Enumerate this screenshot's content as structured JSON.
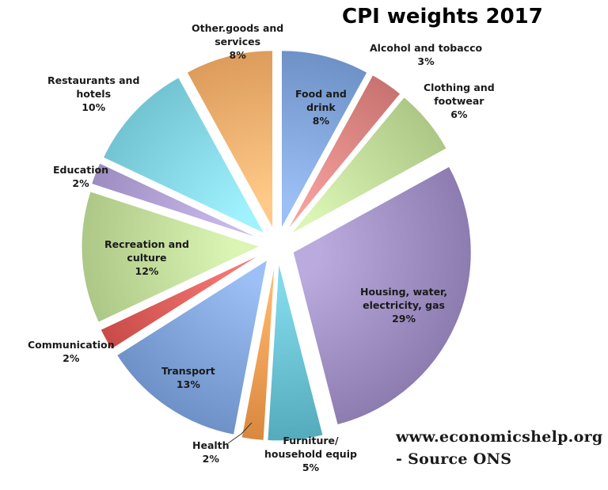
{
  "chart_data": {
    "type": "pie",
    "title": "CPI weights 2017",
    "exploded": true,
    "slices": [
      {
        "label": "Food and drink",
        "value": 8,
        "value_label": "8%",
        "color": "#8aaee3"
      },
      {
        "label": "Alcohol and tobacco",
        "value": 3,
        "value_label": "3%",
        "color": "#e48f8c"
      },
      {
        "label": "Clothing and footwear",
        "value": 6,
        "value_label": "6%",
        "color": "#c9e3a2"
      },
      {
        "label": "Housing, water, electricity, gas",
        "value": 29,
        "value_label": "29%",
        "color": "#a898cc"
      },
      {
        "label": "Furniture/ household equip",
        "value": 5,
        "value_label": "5%",
        "color": "#6fc7d8"
      },
      {
        "label": "Health",
        "value": 2,
        "value_label": "2%",
        "color": "#f5a45a"
      },
      {
        "label": "Transport",
        "value": 13,
        "value_label": "13%",
        "color": "#8aaee3"
      },
      {
        "label": "Communication",
        "value": 2,
        "value_label": "2%",
        "color": "#e46763"
      },
      {
        "label": "Recreation and culture",
        "value": 12,
        "value_label": "12%",
        "color": "#c9e3a2"
      },
      {
        "label": "Education",
        "value": 2,
        "value_label": "2%",
        "color": "#b8a8dc"
      },
      {
        "label": "Restaurants and hotels",
        "value": 10,
        "value_label": "10%",
        "color": "#8fe0ef"
      },
      {
        "label": "Other.goods and services",
        "value": 8,
        "value_label": "8%",
        "color": "#f9b877"
      }
    ],
    "source_text": [
      "www.economicshelp.org",
      "- Source ONS"
    ]
  }
}
